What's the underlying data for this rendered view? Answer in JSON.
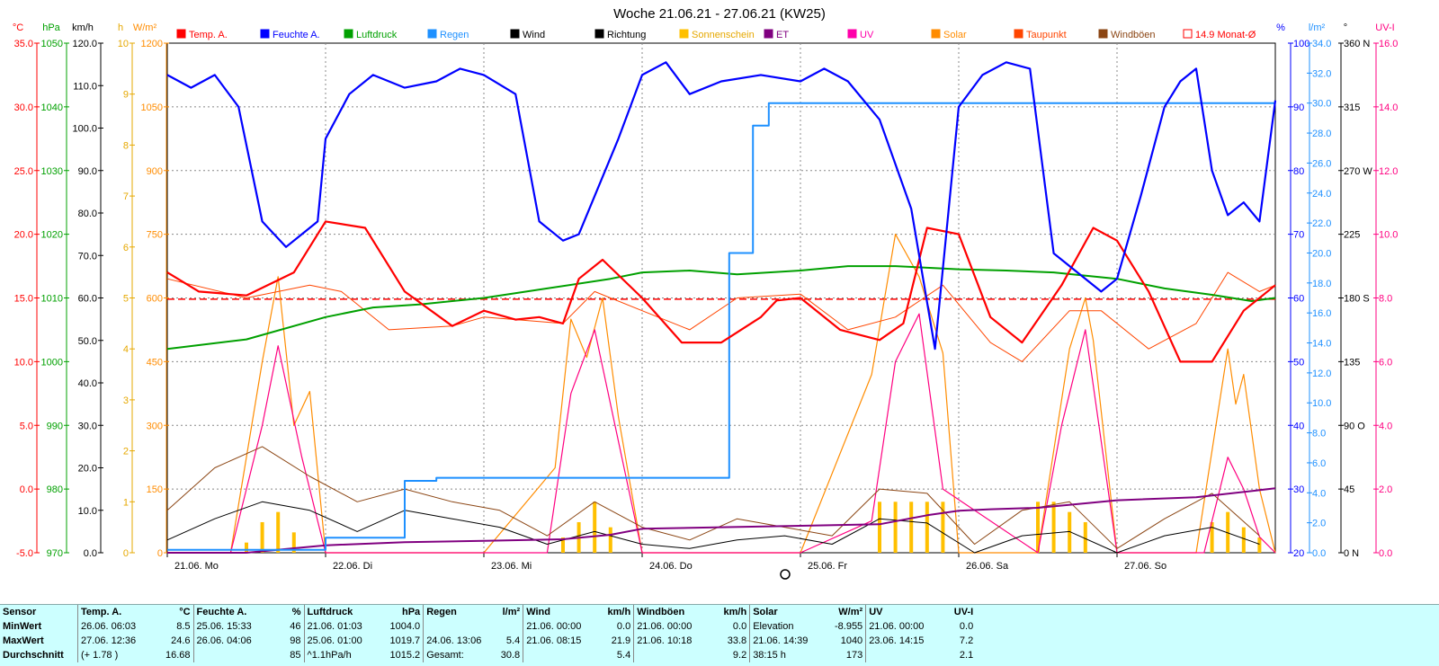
{
  "title": "Woche 21.06.21 - 27.06.21 (KW25)",
  "chart_data": {
    "type": "line",
    "title": "Woche 21.06.21 - 27.06.21 (KW25)",
    "x_ticks": [
      "21.06.  Mo",
      "22.06.  Di",
      "23.06.  Mi",
      "24.06.  Do",
      "25.06.  Fr",
      "26.06.  Sa",
      "27.06.  So"
    ],
    "legend": [
      {
        "name": "Temp. A.",
        "color": "#ff0000"
      },
      {
        "name": "Feuchte A.",
        "color": "#0000ff"
      },
      {
        "name": "Luftdruck",
        "color": "#00a000"
      },
      {
        "name": "Regen",
        "color": "#1e90ff"
      },
      {
        "name": "Wind",
        "color": "#000000"
      },
      {
        "name": "Richtung",
        "color": "#000000"
      },
      {
        "name": "Sonnenschein",
        "color": "#ffc000"
      },
      {
        "name": "ET",
        "color": "#800080"
      },
      {
        "name": "UV",
        "color": "#ff00aa"
      },
      {
        "name": "Solar",
        "color": "#ff8c00"
      },
      {
        "name": "Taupunkt",
        "color": "#ff4500"
      },
      {
        "name": "Windböen",
        "color": "#8b4513"
      },
      {
        "name": "14.9 Monat-Ø",
        "color": "#ff0000"
      }
    ],
    "axes": {
      "temp": {
        "unit": "°C",
        "ylim": [
          -5,
          35
        ],
        "ticks": [
          "-5.0",
          "0.0",
          "5.0",
          "10.0",
          "15.0",
          "20.0",
          "25.0",
          "30.0",
          "35.0"
        ]
      },
      "pressure": {
        "unit": "hPa",
        "ylim": [
          970,
          1050
        ],
        "ticks": [
          "970",
          "980",
          "990",
          "1000",
          "1010",
          "1020",
          "1030",
          "1040",
          "1050"
        ]
      },
      "wind": {
        "unit": "km/h",
        "ylim": [
          0,
          120
        ],
        "ticks": [
          "0.0",
          "10.0",
          "20.0",
          "30.0",
          "40.0",
          "50.0",
          "60.0",
          "70.0",
          "80.0",
          "90.0",
          "100.0",
          "110.0",
          "120.0"
        ]
      },
      "sunshine": {
        "unit": "h",
        "ylim": [
          0,
          10
        ],
        "ticks": [
          "0",
          "1",
          "2",
          "3",
          "4",
          "5",
          "6",
          "7",
          "8",
          "9",
          "10"
        ]
      },
      "solar": {
        "unit": "W/m²",
        "ylim": [
          0,
          1200
        ],
        "ticks": [
          "0",
          "150",
          "300",
          "450",
          "600",
          "750",
          "900",
          "1050",
          "1200"
        ]
      },
      "humidity": {
        "unit": "%",
        "ylim": [
          20,
          100
        ],
        "ticks": [
          "20",
          "30",
          "40",
          "50",
          "60",
          "70",
          "80",
          "90",
          "100"
        ]
      },
      "rain": {
        "unit": "l/m²",
        "ylim": [
          0,
          34
        ],
        "ticks": [
          "0.0",
          "2.0",
          "4.0",
          "6.0",
          "8.0",
          "10.0",
          "12.0",
          "14.0",
          "16.0",
          "18.0",
          "20.0",
          "22.0",
          "24.0",
          "26.0",
          "28.0",
          "30.0",
          "32.0",
          "34.0"
        ]
      },
      "direction": {
        "unit": "°",
        "ylim": [
          0,
          360
        ],
        "ticks": [
          "0 N",
          "45",
          "90 O",
          "135",
          "180 S",
          "225",
          "270 W",
          "315",
          "360 N"
        ]
      },
      "uv": {
        "unit": "UV-I",
        "ylim": [
          0,
          16
        ],
        "ticks": [
          "0.0",
          "2.0",
          "4.0",
          "6.0",
          "8.0",
          "10.0",
          "12.0",
          "14.0",
          "16.0"
        ]
      }
    },
    "month_avg_temp": 14.9,
    "series": [
      {
        "name": "Temp. A.",
        "x": [
          0,
          0.2,
          0.5,
          0.8,
          1,
          1.25,
          1.5,
          1.8,
          2,
          2.2,
          2.35,
          2.5,
          2.6,
          2.75,
          3,
          3.25,
          3.5,
          3.75,
          3.85,
          4,
          4.25,
          4.5,
          4.65,
          4.8,
          5,
          5.2,
          5.4,
          5.65,
          5.85,
          6,
          6.2,
          6.4,
          6.6,
          6.8,
          7
        ],
        "values": [
          17,
          15.5,
          15.2,
          17,
          21,
          20.5,
          15.5,
          12.8,
          14,
          13.3,
          13.5,
          13,
          16.5,
          18,
          15,
          11.5,
          11.5,
          13.5,
          14.8,
          15,
          12.5,
          11.7,
          13,
          20.5,
          20,
          13.5,
          11.5,
          16,
          20.5,
          19.5,
          15.5,
          10,
          10,
          14,
          16
        ]
      },
      {
        "name": "Feuchte A.",
        "x": [
          0,
          0.15,
          0.3,
          0.45,
          0.6,
          0.75,
          0.85,
          0.95,
          1,
          1.15,
          1.3,
          1.5,
          1.7,
          1.85,
          2,
          2.2,
          2.35,
          2.5,
          2.6,
          2.7,
          2.85,
          3,
          3.15,
          3.3,
          3.5,
          3.75,
          4,
          4.15,
          4.3,
          4.5,
          4.7,
          4.85,
          5,
          5.15,
          5.3,
          5.45,
          5.6,
          5.75,
          5.9,
          6,
          6.15,
          6.3,
          6.4,
          6.5,
          6.6,
          6.7,
          6.8,
          6.9,
          7
        ],
        "values": [
          95,
          93,
          95,
          90,
          72,
          68,
          70,
          72,
          85,
          92,
          95,
          93,
          94,
          96,
          95,
          92,
          72,
          69,
          70,
          76,
          85,
          95,
          97,
          92,
          94,
          95,
          94,
          96,
          94,
          88,
          74,
          52,
          90,
          95,
          97,
          96,
          67,
          64,
          61,
          63,
          76,
          90,
          94,
          96,
          80,
          73,
          75,
          72,
          91
        ]
      },
      {
        "name": "Luftdruck",
        "x": [
          0,
          0.5,
          1,
          1.3,
          1.6,
          2,
          2.4,
          2.8,
          3,
          3.3,
          3.6,
          4,
          4.3,
          4.6,
          5,
          5.3,
          5.6,
          6,
          6.3,
          6.6,
          6.85,
          7
        ],
        "values": [
          1002,
          1003.5,
          1007,
          1008.5,
          1009,
          1010,
          1011.5,
          1013,
          1014,
          1014.3,
          1013.7,
          1014.3,
          1015,
          1015,
          1014.5,
          1014.3,
          1014,
          1013,
          1011.5,
          1010.5,
          1009.5,
          1010
        ]
      },
      {
        "name": "Regen",
        "x": [
          0,
          0.9,
          1,
          1.4,
          1.5,
          1.7,
          2,
          2.5,
          3,
          3.45,
          3.55,
          3.7,
          3.8,
          3.9,
          4,
          4.5,
          5,
          5.5,
          6,
          6.5,
          7
        ],
        "values": [
          0.2,
          0.2,
          1.0,
          1.0,
          4.8,
          5.0,
          5.0,
          5.0,
          5.0,
          5.0,
          20,
          28.5,
          30.0,
          30.0,
          30.0,
          30.0,
          30.0,
          30.0,
          30.0,
          30.0,
          30.0
        ]
      },
      {
        "name": "Wind",
        "x": [
          0,
          0.3,
          0.6,
          0.9,
          1.2,
          1.5,
          1.8,
          2.1,
          2.4,
          2.7,
          3,
          3.3,
          3.6,
          3.9,
          4.2,
          4.5,
          4.8,
          5.1,
          5.4,
          5.7,
          6,
          6.3,
          6.6,
          6.9
        ],
        "values": [
          3,
          8,
          12,
          10,
          5,
          10,
          8,
          6,
          2,
          5,
          2,
          1,
          3,
          4,
          2,
          8,
          7,
          0,
          4,
          5,
          0,
          4,
          6,
          2
        ]
      },
      {
        "name": "Windböen",
        "x": [
          0,
          0.3,
          0.6,
          0.9,
          1.2,
          1.5,
          1.8,
          2.1,
          2.4,
          2.7,
          3,
          3.3,
          3.6,
          3.9,
          4.2,
          4.5,
          4.8,
          5.1,
          5.4,
          5.7,
          6,
          6.3,
          6.6,
          6.9
        ],
        "values": [
          10,
          20,
          25,
          18,
          12,
          15,
          12,
          10,
          4,
          12,
          6,
          3,
          8,
          6,
          4,
          15,
          14,
          2,
          10,
          12,
          1,
          8,
          14,
          4
        ]
      },
      {
        "name": "Solar",
        "x": [
          0,
          0.4,
          0.6,
          0.7,
          0.8,
          0.9,
          1,
          1.5,
          2,
          2.45,
          2.55,
          2.65,
          2.75,
          2.85,
          3,
          3.5,
          4,
          4.45,
          4.6,
          4.75,
          4.9,
          5,
          5.5,
          5.7,
          5.8,
          5.85,
          6,
          6.5,
          6.7,
          6.75,
          6.8,
          6.9,
          7
        ],
        "values": [
          0,
          0,
          450,
          650,
          300,
          380,
          0,
          0,
          0,
          200,
          550,
          460,
          600,
          320,
          0,
          0,
          0,
          420,
          750,
          650,
          470,
          0,
          0,
          480,
          600,
          500,
          0,
          0,
          480,
          350,
          420,
          150,
          0
        ]
      },
      {
        "name": "UV",
        "x": [
          0,
          0.4,
          0.6,
          0.7,
          0.85,
          1,
          2,
          2.4,
          2.55,
          2.7,
          3,
          3.5,
          4,
          4.45,
          4.6,
          4.75,
          4.9,
          5.5,
          5.65,
          5.8,
          6,
          6.55,
          6.7,
          6.8,
          6.9,
          7
        ],
        "values": [
          0,
          0,
          4,
          6.5,
          3,
          0,
          0,
          0,
          5,
          7,
          0,
          0,
          0,
          1,
          6,
          7.5,
          2,
          0,
          4,
          7,
          0,
          0,
          3,
          2,
          0.5,
          0
        ]
      },
      {
        "name": "ET",
        "x": [
          0,
          0.5,
          0.8,
          1,
          1.5,
          2,
          2.5,
          2.8,
          3,
          3.5,
          4,
          4.5,
          4.8,
          5,
          5.2,
          5.5,
          5.8,
          6,
          6.5,
          7
        ],
        "values": [
          0,
          0,
          0.3,
          0.5,
          0.7,
          0.8,
          0.9,
          1.2,
          1.6,
          1.7,
          1.8,
          1.9,
          2.5,
          2.8,
          2.9,
          3.0,
          3.3,
          3.5,
          3.7,
          4.3
        ]
      },
      {
        "name": "Sonnenschein",
        "x": [
          0.5,
          0.6,
          0.7,
          0.8,
          2.5,
          2.6,
          2.7,
          2.8,
          4.5,
          4.6,
          4.7,
          4.8,
          4.9,
          5.5,
          5.6,
          5.7,
          5.8,
          6.6,
          6.7,
          6.8,
          6.9
        ],
        "values": [
          0.2,
          0.6,
          0.8,
          0.4,
          0.3,
          0.6,
          1.0,
          0.5,
          1.0,
          1.0,
          1.0,
          1.0,
          1.0,
          1.0,
          1.0,
          0.8,
          0.6,
          0.6,
          0.8,
          0.5,
          0.3
        ]
      },
      {
        "name": "Taupunkt",
        "x": [
          0,
          0.5,
          0.9,
          1.1,
          1.4,
          1.8,
          2,
          2.5,
          2.7,
          3,
          3.3,
          3.6,
          4,
          4.3,
          4.6,
          4.9,
          5.2,
          5.4,
          5.7,
          5.9,
          6.2,
          6.5,
          6.7,
          6.9,
          7
        ],
        "values": [
          16.5,
          15,
          16,
          15.5,
          12.5,
          12.8,
          13.5,
          13,
          15.5,
          14,
          12.5,
          15,
          15.3,
          12.5,
          13.5,
          16,
          11.5,
          10,
          14,
          14,
          11,
          13,
          17,
          15.5,
          16
        ]
      }
    ]
  },
  "stats": {
    "headers": [
      "Sensor",
      "Temp. A.",
      "°C",
      "Feuchte A.",
      "%",
      "Luftdruck",
      "hPa",
      "Regen",
      "l/m²",
      "Wind",
      "km/h",
      "Windböen",
      "km/h",
      "Solar",
      "W/m²",
      "UV",
      "UV-I"
    ],
    "rows": [
      {
        "label": "MinWert",
        "cells": [
          "26.06.  06:03",
          "8.5",
          "25.06.  15:33",
          "46",
          "21.06.  01:03",
          "1004.0",
          "",
          "",
          "21.06.  00:00",
          "0.0",
          "21.06.  00:00",
          "0.0",
          "Elevation",
          "-8.955",
          "21.06.  00:00",
          "0.0"
        ]
      },
      {
        "label": "MaxWert",
        "cells": [
          "27.06.  12:36",
          "24.6",
          "26.06.  04:06",
          "98",
          "25.06.  01:00",
          "1019.7",
          "24.06.  13:06",
          "5.4",
          "21.06.  08:15",
          "21.9",
          "21.06.  10:18",
          "33.8",
          "21.06.  14:39",
          "1040",
          "23.06.  14:15",
          "7.2"
        ]
      },
      {
        "label": "Durchschnitt",
        "cells": [
          "(+ 1.78 )",
          "16.68",
          "",
          "85",
          "^1.1hPa/h",
          "1015.2",
          "Gesamt:",
          "30.8",
          "",
          "5.4",
          "",
          "9.2",
          "38:15 h",
          "173",
          "",
          "2.1"
        ]
      }
    ]
  }
}
